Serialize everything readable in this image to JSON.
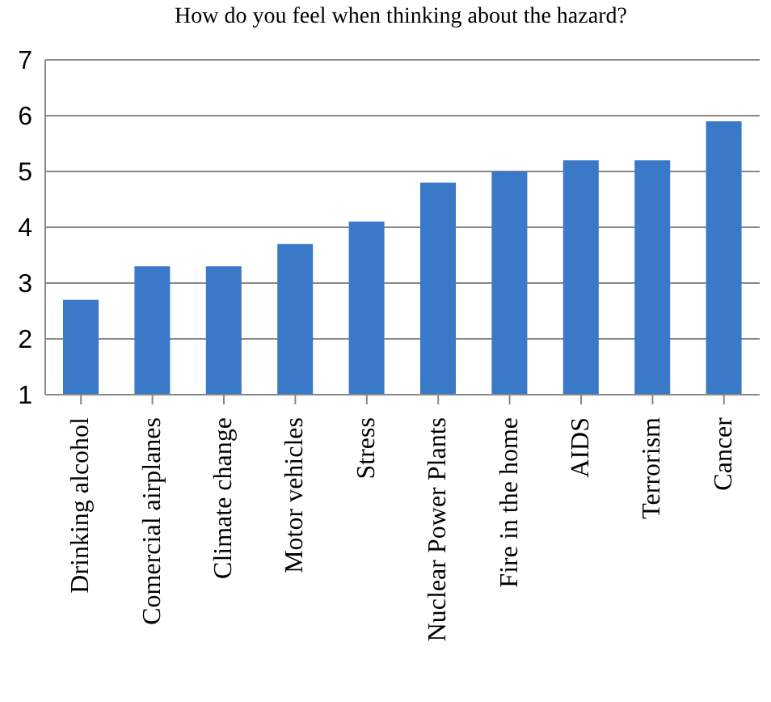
{
  "chart_data": {
    "type": "bar",
    "title": "How do you feel when thinking about the hazard?",
    "categories": [
      "Drinking alcohol",
      "Comercial airplanes",
      "Climate change",
      "Motor vehicles",
      "Stress",
      "Nuclear Power Plants",
      "Fire in the home",
      "AIDS",
      "Terrorism",
      "Cancer"
    ],
    "values": [
      2.7,
      3.3,
      3.3,
      3.7,
      4.1,
      4.8,
      5.0,
      5.2,
      5.2,
      5.9
    ],
    "color": "#3a78c8",
    "ylim": [
      1,
      7
    ],
    "yticks": [
      1,
      2,
      3,
      4,
      5,
      6,
      7
    ],
    "grid": "y"
  }
}
